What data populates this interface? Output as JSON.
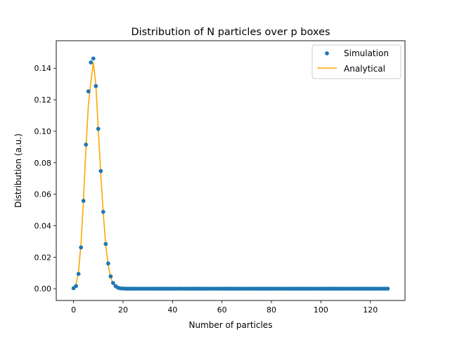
{
  "chart_data": {
    "type": "scatter",
    "title": "Distribution of N particles over p boxes",
    "xlabel": "Number of particles",
    "ylabel": "Distribution (a.u.)",
    "xlim": [
      -7,
      134
    ],
    "ylim": [
      -0.0075,
      0.1575
    ],
    "xticks": [
      0,
      20,
      40,
      60,
      80,
      100,
      120
    ],
    "yticks": [
      0.0,
      0.02,
      0.04,
      0.06,
      0.08,
      0.1,
      0.12,
      0.14
    ],
    "ytick_labels": [
      "0.00",
      "0.02",
      "0.04",
      "0.06",
      "0.08",
      "0.10",
      "0.12",
      "0.14"
    ],
    "grid": false,
    "legend_position": "top-right",
    "series": [
      {
        "name": "Simulation",
        "kind": "scatter",
        "color": "#1f77b4",
        "x": [
          0,
          1,
          2,
          3,
          4,
          5,
          6,
          7,
          8,
          9,
          10,
          11,
          12,
          13,
          14,
          15,
          16,
          17,
          18,
          19,
          20,
          21,
          22,
          23,
          24,
          25,
          26,
          27,
          28,
          29,
          30,
          31,
          32,
          33,
          34,
          35,
          36,
          37,
          38,
          39,
          40,
          41,
          42,
          43,
          44,
          45,
          46,
          47,
          48,
          49,
          50,
          51,
          52,
          53,
          54,
          55,
          56,
          57,
          58,
          59,
          60,
          61,
          62,
          63,
          64,
          65,
          66,
          67,
          68,
          69,
          70,
          71,
          72,
          73,
          74,
          75,
          76,
          77,
          78,
          79,
          80,
          81,
          82,
          83,
          84,
          85,
          86,
          87,
          88,
          89,
          90,
          91,
          92,
          93,
          94,
          95,
          96,
          97,
          98,
          99,
          100,
          101,
          102,
          103,
          104,
          105,
          106,
          107,
          108,
          109,
          110,
          111,
          112,
          113,
          114,
          115,
          116,
          117,
          118,
          119,
          120,
          121,
          122,
          123,
          124,
          125,
          126,
          127
        ],
        "y": [
          0.0003,
          0.0017,
          0.0094,
          0.0262,
          0.0558,
          0.0915,
          0.1253,
          0.1437,
          0.1462,
          0.1287,
          0.1015,
          0.0747,
          0.0488,
          0.0284,
          0.016,
          0.0078,
          0.0036,
          0.0016,
          0.0006,
          0.0002,
          0.0001,
          0.0,
          0.0,
          0.0,
          0.0,
          0.0,
          0.0,
          0.0,
          0.0,
          0.0,
          0.0,
          0.0,
          0.0,
          0.0,
          0.0,
          0.0,
          0.0,
          0.0,
          0.0,
          0.0,
          0.0,
          0.0,
          0.0,
          0.0,
          0.0,
          0.0,
          0.0,
          0.0,
          0.0,
          0.0,
          0.0,
          0.0,
          0.0,
          0.0,
          0.0,
          0.0,
          0.0,
          0.0,
          0.0,
          0.0,
          0.0,
          0.0,
          0.0,
          0.0,
          0.0,
          0.0,
          0.0,
          0.0,
          0.0,
          0.0,
          0.0,
          0.0,
          0.0,
          0.0,
          0.0,
          0.0,
          0.0,
          0.0,
          0.0,
          0.0,
          0.0,
          0.0,
          0.0,
          0.0,
          0.0,
          0.0,
          0.0,
          0.0,
          0.0,
          0.0,
          0.0,
          0.0,
          0.0,
          0.0,
          0.0,
          0.0,
          0.0,
          0.0,
          0.0,
          0.0,
          0.0,
          0.0,
          0.0,
          0.0,
          0.0,
          0.0,
          0.0,
          0.0,
          0.0,
          0.0,
          0.0,
          0.0,
          0.0,
          0.0,
          0.0,
          0.0,
          0.0,
          0.0,
          0.0,
          0.0,
          0.0,
          0.0,
          0.0,
          0.0,
          0.0,
          0.0,
          0.0,
          0.0
        ]
      },
      {
        "name": "Analytical",
        "kind": "line",
        "color": "#ffa500",
        "x": [
          0,
          1,
          2,
          3,
          4,
          5,
          6,
          7,
          8,
          9,
          10,
          11,
          12,
          13,
          14,
          15,
          16,
          17,
          18,
          19,
          20,
          21,
          22,
          23,
          24,
          25,
          26,
          27,
          28,
          29,
          30,
          31,
          32,
          33,
          34,
          35,
          36,
          37,
          38,
          39,
          40,
          41,
          42,
          43,
          44,
          45,
          46,
          47,
          48,
          49,
          50,
          51,
          52,
          53,
          54,
          55,
          56,
          57,
          58,
          59,
          60,
          61,
          62,
          63,
          64,
          65,
          66,
          67,
          68,
          69,
          70,
          71,
          72,
          73,
          74,
          75,
          76,
          77,
          78,
          79,
          80,
          81,
          82,
          83,
          84,
          85,
          86,
          87,
          88,
          89,
          90,
          91,
          92,
          93,
          94,
          95,
          96,
          97,
          98,
          99,
          100,
          101,
          102,
          103,
          104,
          105,
          106,
          107,
          108,
          109,
          110,
          111,
          112,
          113,
          114,
          115,
          116,
          117,
          118,
          119,
          120,
          121,
          122,
          123,
          124,
          125,
          126,
          127
        ],
        "y": [
          0.0003,
          0.0027,
          0.0107,
          0.0284,
          0.0562,
          0.0889,
          0.1169,
          0.1316,
          0.1436,
          0.13,
          0.101,
          0.073,
          0.048,
          0.028,
          0.015,
          0.007,
          0.003,
          0.0012,
          0.0004,
          0.0001,
          0.0,
          0.0,
          0.0,
          0.0,
          0.0,
          0.0,
          0.0,
          0.0,
          0.0,
          0.0,
          0.0,
          0.0,
          0.0,
          0.0,
          0.0,
          0.0,
          0.0,
          0.0,
          0.0,
          0.0,
          0.0,
          0.0,
          0.0,
          0.0,
          0.0,
          0.0,
          0.0,
          0.0,
          0.0,
          0.0,
          0.0,
          0.0,
          0.0,
          0.0,
          0.0,
          0.0,
          0.0,
          0.0,
          0.0,
          0.0,
          0.0,
          0.0,
          0.0,
          0.0,
          0.0,
          0.0,
          0.0,
          0.0,
          0.0,
          0.0,
          0.0,
          0.0,
          0.0,
          0.0,
          0.0,
          0.0,
          0.0,
          0.0,
          0.0,
          0.0,
          0.0,
          0.0,
          0.0,
          0.0,
          0.0,
          0.0,
          0.0,
          0.0,
          0.0,
          0.0,
          0.0,
          0.0,
          0.0,
          0.0,
          0.0,
          0.0,
          0.0,
          0.0,
          0.0,
          0.0,
          0.0,
          0.0,
          0.0,
          0.0,
          0.0,
          0.0,
          0.0,
          0.0,
          0.0,
          0.0,
          0.0,
          0.0,
          0.0,
          0.0,
          0.0,
          0.0,
          0.0,
          0.0,
          0.0,
          0.0,
          0.0,
          0.0,
          0.0,
          0.0,
          0.0,
          0.0,
          0.0,
          0.0
        ]
      }
    ]
  }
}
